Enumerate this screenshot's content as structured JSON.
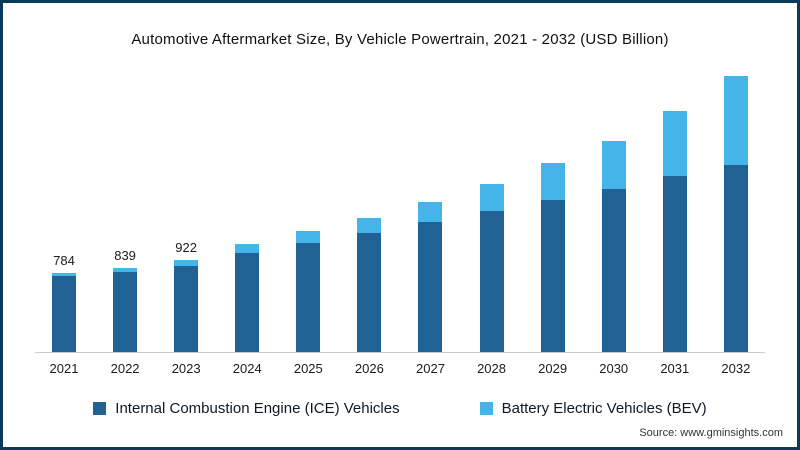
{
  "title": "Automotive Aftermarket Size, By Vehicle Powertrain, 2021 - 2032 (USD Billion)",
  "source": "Source: www.gminsights.com",
  "legend": [
    {
      "label": "Internal Combustion Engine (ICE) Vehicles",
      "color": "#1f6293"
    },
    {
      "label": "Battery Electric Vehicles (BEV)",
      "color": "#45b4e8"
    }
  ],
  "chart_data": {
    "type": "bar",
    "stacked": true,
    "title": "Automotive Aftermarket Size, By Vehicle Powertrain, 2021 - 2032 (USD Billion)",
    "ylabel": "USD Billion",
    "legend_position": "bottom",
    "grid": false,
    "categories": [
      "2021",
      "2022",
      "2023",
      "2024",
      "2025",
      "2026",
      "2027",
      "2028",
      "2029",
      "2030",
      "2031",
      "2032"
    ],
    "series": [
      {
        "name": "Internal Combustion Engine (ICE) Vehicles",
        "color": "#1f6293",
        "values": [
          760,
          800,
          862,
          990,
          1090,
          1190,
          1300,
          1405,
          1515,
          1625,
          1755,
          1865
        ]
      },
      {
        "name": "Battery Electric Vehicles (BEV)",
        "color": "#45b4e8",
        "values": [
          24,
          39,
          60,
          90,
          115,
          150,
          200,
          270,
          375,
          485,
          655,
          890
        ]
      }
    ],
    "totals": [
      784,
      839,
      922,
      1080,
      1205,
      1340,
      1500,
      1675,
      1890,
      2110,
      2410,
      2755
    ],
    "data_labels": [
      784,
      839,
      922,
      null,
      null,
      null,
      null,
      null,
      null,
      null,
      null,
      null
    ]
  }
}
